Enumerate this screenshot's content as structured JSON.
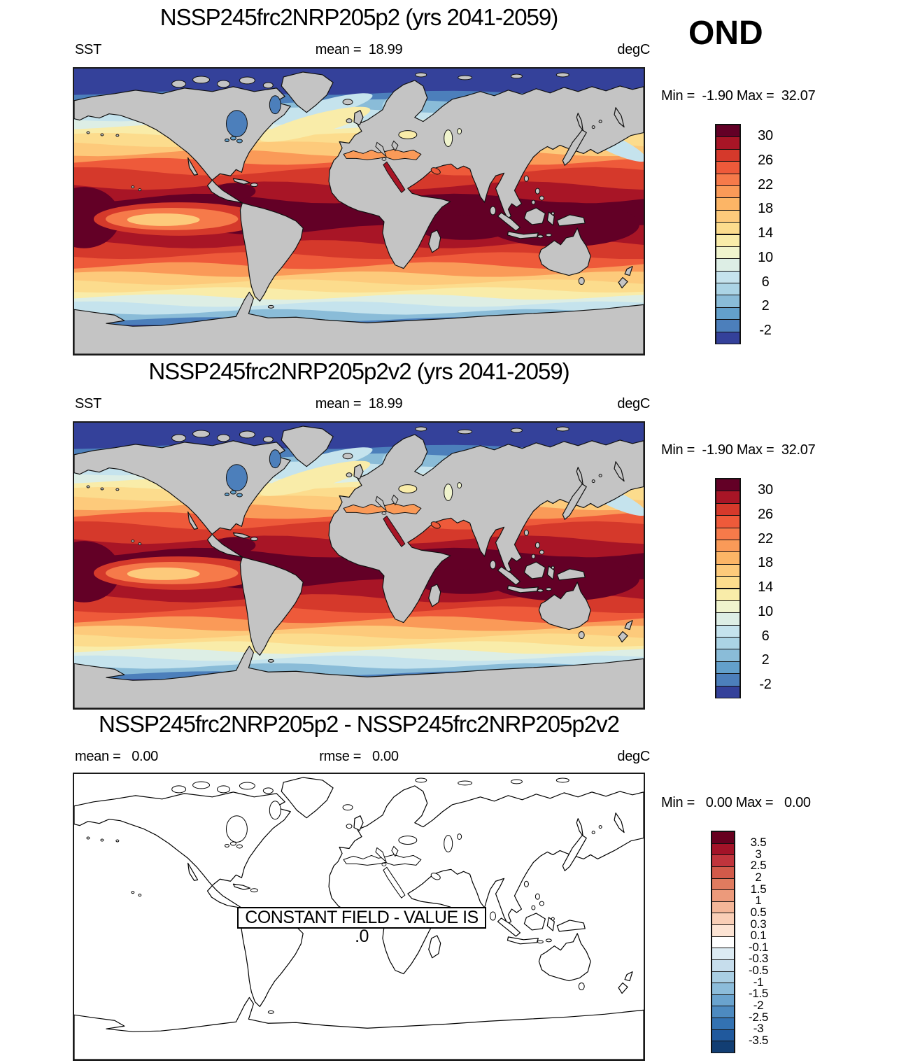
{
  "season": "OND",
  "panel1": {
    "title": "NSSP245frc2NRP205p2 (yrs 2041-2059)",
    "left_label": "SST",
    "center_label": "mean =  18.99",
    "units": "degC",
    "minmax": "Min =  -1.90 Max =  32.07",
    "colorbar_ticks": [
      "30",
      "26",
      "22",
      "18",
      "14",
      "10",
      "6",
      "2",
      "-2"
    ]
  },
  "panel2": {
    "title": "NSSP245frc2NRP205p2v2 (yrs 2041-2059)",
    "left_label": "SST",
    "center_label": "mean =  18.99",
    "units": "degC",
    "minmax": "Min =  -1.90 Max =  32.07",
    "colorbar_ticks": [
      "30",
      "26",
      "22",
      "18",
      "14",
      "10",
      "6",
      "2",
      "-2"
    ]
  },
  "panel3": {
    "title": "NSSP245frc2NRP205p2 - NSSP245frc2NRP205p2v2",
    "left_label": "mean =   0.00",
    "center_label": "rmse =   0.00",
    "units": "degC",
    "minmax": "Min =   0.00 Max =   0.00",
    "overlay_label": "CONSTANT FIELD - VALUE IS .0",
    "colorbar_ticks": [
      "3.5",
      "3",
      "2.5",
      "2",
      "1.5",
      "1",
      "0.5",
      "0.3",
      "0.1",
      "-0.1",
      "-0.3",
      "-0.5",
      "-1",
      "-1.5",
      "-2",
      "-2.5",
      "-3",
      "-3.5"
    ]
  },
  "colors": {
    "sst_scale_top_to_bottom": [
      "#630026",
      "#a81526",
      "#d5392b",
      "#ee5a3a",
      "#f67a4a",
      "#fa9a58",
      "#fcb566",
      "#fdca7b",
      "#fcdc8d",
      "#f9eca9",
      "#f0f4cd",
      "#ddeee5",
      "#c5e3ed",
      "#abd4e5",
      "#8abcd8",
      "#63a0cb",
      "#4c7fbb",
      "#34419a"
    ],
    "diff_scale_top_to_bottom": [
      "#67001f",
      "#a31328",
      "#c0343c",
      "#d25a4a",
      "#e07b5f",
      "#ec9a7b",
      "#f4b698",
      "#f9ceb6",
      "#fce3d3",
      "#ffffff",
      "#dcebf3",
      "#c6ddec",
      "#a9cee3",
      "#8cbcda",
      "#6aa3ce",
      "#4d8ac0",
      "#3372b2",
      "#20599d",
      "#123e73"
    ],
    "land": "#c4c4c4",
    "coastline": "#111111"
  },
  "chart_data": [
    {
      "type": "heatmap",
      "subtype": "global-filled-contour-map",
      "title": "NSSP245frc2NRP205p2 (yrs 2041-2059)",
      "variable": "SST",
      "units": "degC",
      "season": "OND",
      "stats": {
        "mean": 18.99,
        "min": -1.9,
        "max": 32.07
      },
      "contour_levels": [
        -2,
        0,
        2,
        4,
        6,
        8,
        10,
        12,
        14,
        16,
        18,
        20,
        22,
        24,
        26,
        28,
        30
      ],
      "colorbar_labels": [
        30,
        26,
        22,
        18,
        14,
        10,
        6,
        2,
        -2
      ],
      "legend_position": "right",
      "description": "Global sea-surface-temperature map: dark-maroon (>30 degC) in tropical warm pool, grading through red/orange/yellow mid-latitudes to dark blue (< -2 degC) at both poles; land masked gray."
    },
    {
      "type": "heatmap",
      "subtype": "global-filled-contour-map",
      "title": "NSSP245frc2NRP205p2v2 (yrs 2041-2059)",
      "variable": "SST",
      "units": "degC",
      "season": "OND",
      "stats": {
        "mean": 18.99,
        "min": -1.9,
        "max": 32.07
      },
      "contour_levels": [
        -2,
        0,
        2,
        4,
        6,
        8,
        10,
        12,
        14,
        16,
        18,
        20,
        22,
        24,
        26,
        28,
        30
      ],
      "colorbar_labels": [
        30,
        26,
        22,
        18,
        14,
        10,
        6,
        2,
        -2
      ],
      "legend_position": "right",
      "description": "Identical SST field to first panel (same mean, min and max)."
    },
    {
      "type": "heatmap",
      "subtype": "difference-map-outline",
      "title": "NSSP245frc2NRP205p2 - NSSP245frc2NRP205p2v2",
      "variable": "SST difference",
      "units": "degC",
      "stats": {
        "mean": 0.0,
        "rmse": 0.0,
        "min": 0.0,
        "max": 0.0
      },
      "contour_levels": [
        -3.5,
        -3,
        -2.5,
        -2,
        -1.5,
        -1,
        -0.5,
        -0.3,
        -0.1,
        0.1,
        0.3,
        0.5,
        1,
        1.5,
        2,
        2.5,
        3,
        3.5
      ],
      "annotation": "CONSTANT FIELD - VALUE IS .0",
      "legend_position": "right",
      "description": "Difference field is uniformly zero, so the map shows coastline outlines only on white."
    }
  ]
}
